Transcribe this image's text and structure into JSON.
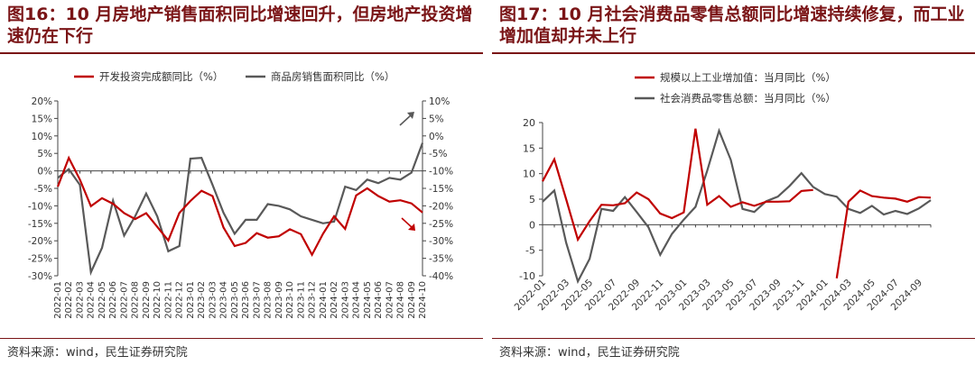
{
  "left_panel": {
    "title": "图16：10 月房地产销售面积同比增速回升，但房地产投资增速仍在下行",
    "source": "资料来源：wind，民生证券研究院"
  },
  "right_panel": {
    "title": "图17：10 月社会消费品零售总额同比增速持续修复，而工业增加值却并未上行",
    "source": "资料来源：wind，民生证券研究院"
  },
  "colors": {
    "red": "#c00000",
    "gray": "#595959",
    "title": "#7a1416"
  },
  "chart_data": [
    {
      "type": "line",
      "x": [
        "2022-01",
        "2022-02",
        "2022-03",
        "2022-04",
        "2022-05",
        "2022-06",
        "2022-07",
        "2022-08",
        "2022-09",
        "2022-10",
        "2022-11",
        "2022-12",
        "2023-01",
        "2023-02",
        "2023-03",
        "2023-04",
        "2023-05",
        "2023-06",
        "2023-07",
        "2023-08",
        "2023-09",
        "2023-10",
        "2023-11",
        "2023-12",
        "2024-01",
        "2024-02",
        "2024-03",
        "2024-04",
        "2024-05",
        "2024-06",
        "2024-07",
        "2024-08",
        "2024-09",
        "2024-10"
      ],
      "x_tick_labels": [
        "2022-01",
        "2022-02",
        "2022-03",
        "2022-04",
        "2022-05",
        "2022-06",
        "2022-07",
        "2022-08",
        "2022-09",
        "2022-10",
        "2022-11",
        "2022-12",
        "2023-01",
        "2023-02",
        "2023-03",
        "2023-04",
        "2023-05",
        "2023-06",
        "2023-07",
        "2023-08",
        "2023-09",
        "2023-10",
        "2023-11",
        "2023-12",
        "2024-01",
        "2024-02",
        "2024-03",
        "2024-04",
        "2024-05",
        "2024-06",
        "2024-07",
        "2024-08",
        "2024-09",
        "2024-10"
      ],
      "series": [
        {
          "name": "开发投资完成额同比（%）",
          "axis": "left",
          "color": "#c00000",
          "values": [
            -4.5,
            3.7,
            -2.5,
            -10.1,
            -7.8,
            -9.4,
            -12.1,
            -13.8,
            -12.1,
            -16.0,
            -19.9,
            -12.0,
            -8.6,
            -5.7,
            -7.2,
            -16.2,
            -21.5,
            -20.6,
            -17.8,
            -19.1,
            -18.7,
            -16.7,
            -18.1,
            -24.0,
            -18.0,
            -13.0,
            -16.6,
            -7.0,
            -5.0,
            -7.2,
            -8.8,
            -8.4,
            -9.3,
            -11.9
          ]
        },
        {
          "name": "商品房销售面积同比（%）",
          "axis": "right",
          "color": "#595959",
          "values": [
            -12.0,
            -9.5,
            -14.0,
            -39.0,
            -32.0,
            -18.5,
            -28.5,
            -23.0,
            -16.5,
            -23.0,
            -33.0,
            -31.5,
            -6.5,
            -6.3,
            -14.0,
            -22.0,
            -28.0,
            -24.0,
            -24.0,
            -19.5,
            -20.0,
            -21.0,
            -23.0,
            -24.0,
            -25.0,
            -24.5,
            -14.5,
            -15.5,
            -12.5,
            -13.5,
            -12.0,
            -12.5,
            -10.5,
            -2.0
          ]
        }
      ],
      "left_axis": {
        "min": -30,
        "max": 20,
        "ticks": [
          "20%",
          "15%",
          "10%",
          "5%",
          "0%",
          "-5%",
          "-10%",
          "-15%",
          "-20%",
          "-25%",
          "-30%"
        ]
      },
      "right_axis": {
        "min": -40,
        "max": 10,
        "ticks": [
          "10%",
          "5%",
          "0%",
          "-5%",
          "-10%",
          "-15%",
          "-20%",
          "-25%",
          "-30%",
          "-35%",
          "-40%"
        ]
      },
      "grid": false,
      "legend_position": "top-center",
      "annotations": [
        "up-arrow-gray",
        "down-arrow-red"
      ]
    },
    {
      "type": "line",
      "x": [
        "2022-01",
        "2022-02",
        "2022-03",
        "2022-04",
        "2022-05",
        "2022-06",
        "2022-07",
        "2022-08",
        "2022-09",
        "2022-10",
        "2022-11",
        "2022-12",
        "2023-01",
        "2023-02",
        "2023-03",
        "2023-04",
        "2023-05",
        "2023-06",
        "2023-07",
        "2023-08",
        "2023-09",
        "2023-10",
        "2023-11",
        "2023-12",
        "2024-01",
        "2024-02",
        "2024-03",
        "2024-04",
        "2024-05",
        "2024-06",
        "2024-07",
        "2024-08",
        "2024-09",
        "2024-10"
      ],
      "x_tick_labels": [
        "2022-01",
        "2022-03",
        "2022-05",
        "2022-07",
        "2022-09",
        "2022-11",
        "2023-01",
        "2023-03",
        "2023-05",
        "2023-07",
        "2023-09",
        "2023-11",
        "2024-01",
        "2024-03",
        "2024-05",
        "2024-07",
        "2024-09"
      ],
      "series": [
        {
          "name": "规模以上工业增加值：当月同比（%）",
          "color": "#c00000",
          "values": [
            8.5,
            12.8,
            5.0,
            -2.9,
            0.7,
            3.9,
            3.8,
            4.2,
            6.3,
            5.0,
            2.2,
            1.3,
            2.4,
            18.8,
            3.9,
            5.6,
            3.5,
            4.4,
            3.7,
            4.5,
            4.5,
            4.6,
            6.6,
            6.8,
            null,
            -10.5,
            4.5,
            6.7,
            5.6,
            5.3,
            5.1,
            4.5,
            5.4,
            5.3
          ]
        },
        {
          "name": "社会消费品零售总额：当月同比（%）",
          "color": "#595959",
          "values": [
            4.5,
            6.7,
            -3.5,
            -11.1,
            -6.7,
            3.1,
            2.7,
            5.4,
            2.5,
            -0.5,
            -5.9,
            -1.8,
            1.0,
            3.5,
            10.6,
            18.4,
            12.7,
            3.1,
            2.5,
            4.6,
            5.5,
            7.6,
            10.1,
            7.4,
            6.0,
            5.5,
            3.1,
            2.3,
            3.7,
            2.0,
            2.7,
            2.1,
            3.2,
            4.8
          ]
        }
      ],
      "y_axis": {
        "min": -10,
        "max": 20,
        "ticks": [
          "20",
          "15",
          "10",
          "5",
          "0",
          "-5",
          "-10"
        ]
      },
      "grid": false,
      "legend_position": "top-center"
    }
  ]
}
